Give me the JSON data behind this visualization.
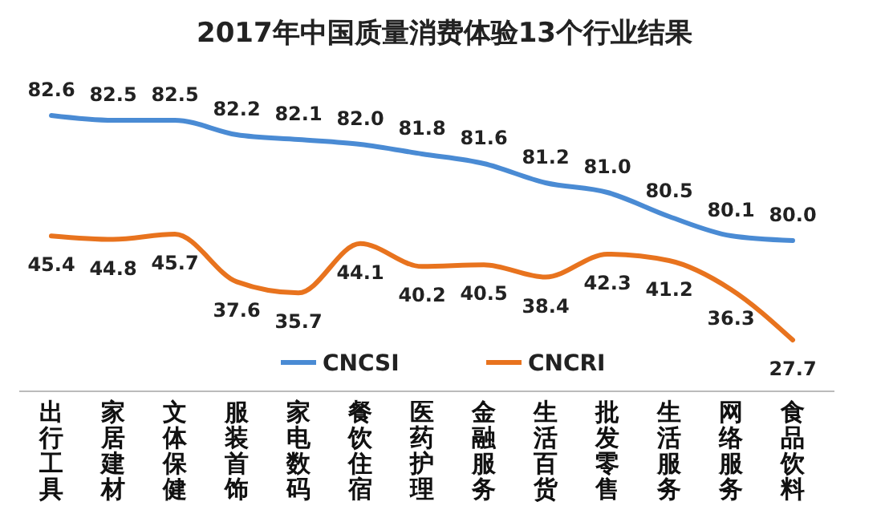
{
  "chart_data": {
    "type": "line",
    "title": "2017年中国质量消费体验13个行业结果",
    "categories": [
      "出行工具",
      "家居建材",
      "文体保健",
      "服装首饰",
      "家电数码",
      "餐饮住宿",
      "医药护理",
      "金融服务",
      "生活百货",
      "批发零售",
      "生活服务",
      "网络服务",
      "食品饮料"
    ],
    "series": [
      {
        "name": "CNCSI",
        "color": "#4a8bd4",
        "values": [
          82.6,
          82.5,
          82.5,
          82.2,
          82.1,
          82.0,
          81.8,
          81.6,
          81.2,
          81.0,
          80.5,
          80.1,
          80.0
        ],
        "value_labels": [
          "82.6",
          "82.5",
          "82.5",
          "82.2",
          "82.1",
          "82.0",
          "81.8",
          "81.6",
          "81.2",
          "81.0",
          "80.5",
          "80.1",
          "80.0"
        ]
      },
      {
        "name": "CNCRI",
        "color": "#e8731e",
        "axis": "y2",
        "values": [
          45.4,
          44.8,
          45.7,
          37.6,
          35.7,
          44.1,
          40.2,
          40.5,
          38.4,
          42.3,
          41.2,
          36.3,
          27.7
        ],
        "value_labels": [
          "45.4",
          "44.8",
          "45.7",
          "37.6",
          "35.7",
          "44.1",
          "40.2",
          "40.5",
          "38.4",
          "42.3",
          "41.2",
          "36.3",
          "27.7"
        ]
      }
    ],
    "legend": "bottom",
    "tick_labels": "x",
    "marker": "none",
    "line_style": "solid"
  }
}
